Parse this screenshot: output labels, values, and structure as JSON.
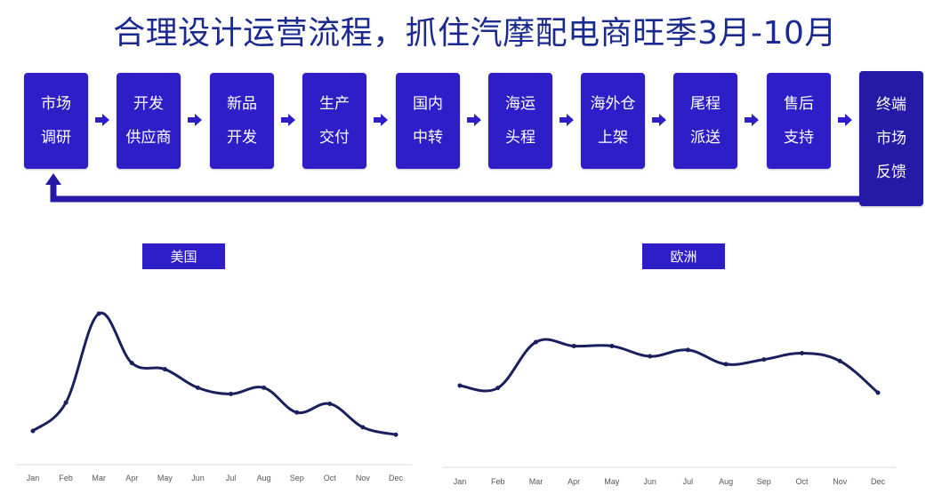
{
  "title": "合理设计运营流程，抓住汽摩配电商旺季3月-10月",
  "flow": {
    "steps": [
      {
        "lines": [
          "市场",
          "调研"
        ]
      },
      {
        "lines": [
          "开发",
          "供应商"
        ]
      },
      {
        "lines": [
          "新品",
          "开发"
        ]
      },
      {
        "lines": [
          "生产",
          "交付"
        ]
      },
      {
        "lines": [
          "国内",
          "中转"
        ]
      },
      {
        "lines": [
          "海运",
          "头程"
        ]
      },
      {
        "lines": [
          "海外仓",
          "上架"
        ]
      },
      {
        "lines": [
          "尾程",
          "派送"
        ]
      },
      {
        "lines": [
          "售后",
          "支持"
        ]
      },
      {
        "lines": [
          "终端",
          "市场",
          "反馈"
        ]
      }
    ],
    "colors": {
      "box": "#2e1ec8",
      "arrow": "#2e1ec8",
      "feedback_line": "#241aa6"
    }
  },
  "chart_data": [
    {
      "type": "line",
      "title": "美国",
      "x": [
        "Jan",
        "Feb",
        "Mar",
        "Apr",
        "May",
        "Jun",
        "Jul",
        "Aug",
        "Sep",
        "Oct",
        "Nov",
        "Dec"
      ],
      "series": [
        {
          "values": [
            5,
            28,
            100,
            60,
            55,
            40,
            35,
            40,
            20,
            27,
            8,
            2
          ]
        }
      ],
      "ylim": [
        0,
        100
      ],
      "color": "#1a1f5e",
      "grid": false
    },
    {
      "type": "line",
      "title": "欧洲",
      "x": [
        "Jan",
        "Feb",
        "Mar",
        "Apr",
        "May",
        "Jun",
        "Jul",
        "Aug",
        "Sep",
        "Oct",
        "Nov",
        "Dec"
      ],
      "series": [
        {
          "values": [
            45,
            42,
            100,
            95,
            95,
            82,
            90,
            72,
            78,
            86,
            76,
            36
          ]
        }
      ],
      "ylim": [
        0,
        100
      ],
      "color": "#1a1f5e",
      "grid": false
    }
  ]
}
